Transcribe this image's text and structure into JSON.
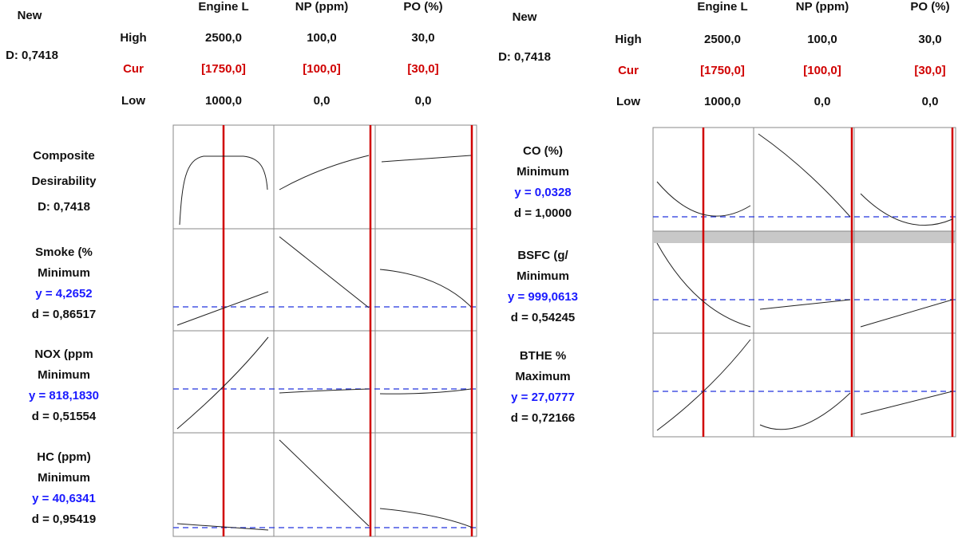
{
  "left": {
    "new": "New",
    "d": "D: 0,7418",
    "row_labels": [
      "High",
      "Cur",
      "Low"
    ],
    "factors": [
      {
        "name": "Engine L",
        "high": "2500,0",
        "cur": "[1750,0]",
        "low": "1000,0"
      },
      {
        "name": "NP (ppm)",
        "high": "100,0",
        "cur": "[100,0]",
        "low": "0,0"
      },
      {
        "name": "PO (%)",
        "high": "30,0",
        "cur": "[30,0]",
        "low": "0,0"
      }
    ],
    "responses": [
      {
        "name": "Composite",
        "goal": "Desirability",
        "d": "D: 0,7418"
      },
      {
        "name": "Smoke (%",
        "goal": "Minimum",
        "y": "y = 4,2652",
        "d": "d = 0,86517"
      },
      {
        "name": "NOX (ppm",
        "goal": "Minimum",
        "y": "y = 818,1830",
        "d": "d = 0,51554"
      },
      {
        "name": "HC (ppm)",
        "goal": "Minimum",
        "y": "y = 40,6341",
        "d": "d = 0,95419"
      }
    ]
  },
  "right": {
    "new": "New",
    "d": "D: 0,7418",
    "row_labels": [
      "High",
      "Cur",
      "Low"
    ],
    "factors": [
      {
        "name": "Engine L",
        "high": "2500,0",
        "cur": "[1750,0]",
        "low": "1000,0"
      },
      {
        "name": "NP (ppm)",
        "high": "100,0",
        "cur": "[100,0]",
        "low": "0,0"
      },
      {
        "name": "PO (%)",
        "high": "30,0",
        "cur": "[30,0]",
        "low": "0,0"
      }
    ],
    "responses": [
      {
        "name": "CO (%)",
        "goal": "Minimum",
        "y": "y = 0,0328",
        "d": "d = 1,0000"
      },
      {
        "name": "BSFC (g/",
        "goal": "Minimum",
        "y": "y = 999,0613",
        "d": "d = 0,54245"
      },
      {
        "name": "BTHE %",
        "goal": "Maximum",
        "y": "y = 27,0777",
        "d": "d = 0,72166"
      }
    ]
  }
}
